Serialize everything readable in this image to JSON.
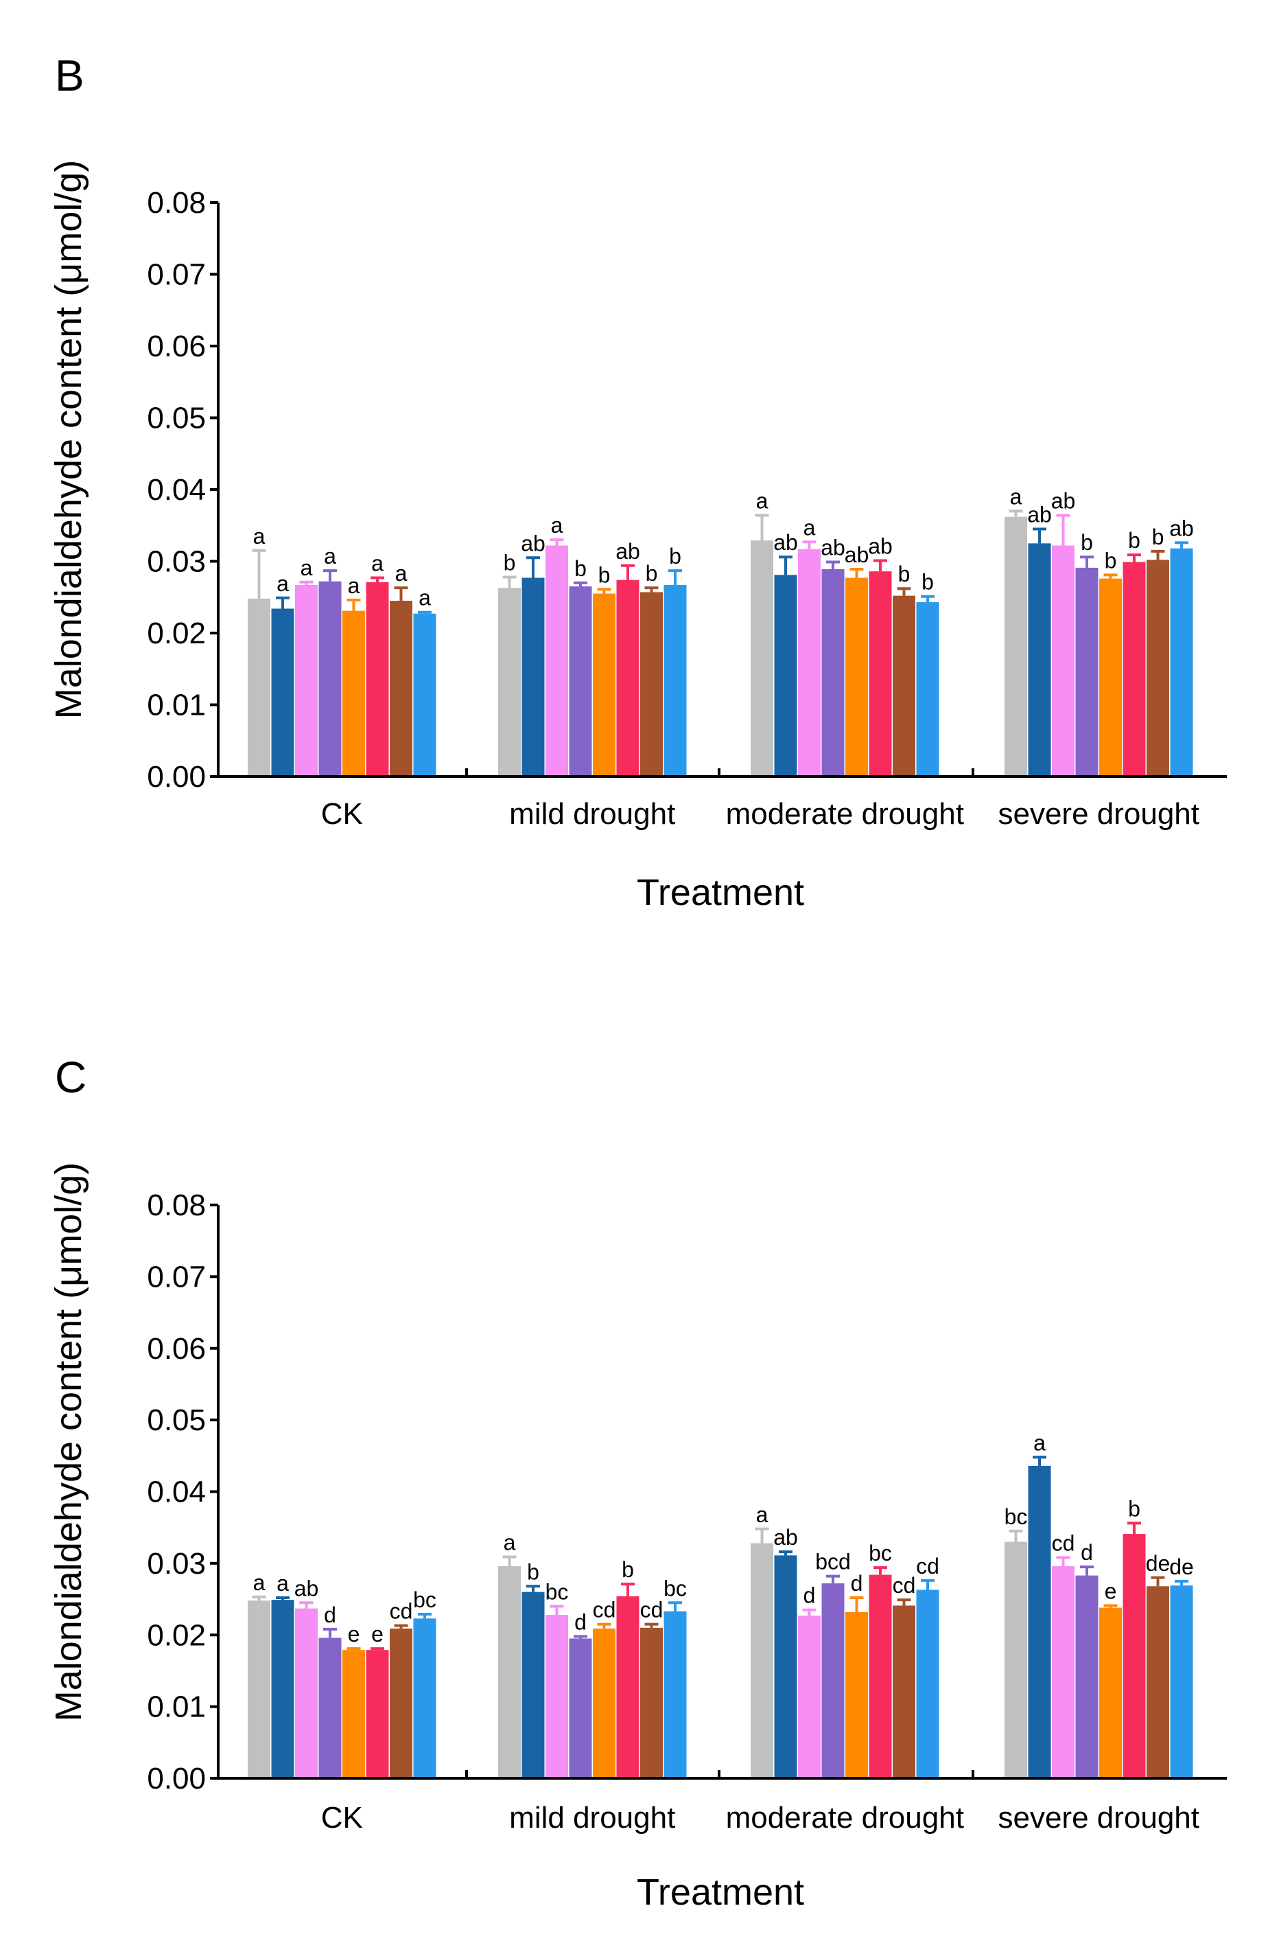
{
  "series_colors": [
    "#c0c0c0",
    "#1864a4",
    "#f78ef5",
    "#8464c8",
    "#ff8a00",
    "#f72c5c",
    "#a3522b",
    "#2a99ec"
  ],
  "chart_data": [
    {
      "type": "bar",
      "panel_label": "B",
      "xlabel": "Treatment",
      "ylabel": "Malondialdehyde content (μmol/g)",
      "ylim": [
        0,
        0.08
      ],
      "yticks": [
        "0.00",
        "0.01",
        "0.02",
        "0.03",
        "0.04",
        "0.05",
        "0.06",
        "0.07",
        "0.08"
      ],
      "categories": [
        "CK",
        "mild drought",
        "moderate drought",
        "severe drought"
      ],
      "series": [
        {
          "values": [
            0.0248,
            0.0263,
            0.0329,
            0.0362
          ],
          "errors": [
            0.0067,
            0.0015,
            0.0035,
            0.0008
          ]
        },
        {
          "values": [
            0.0234,
            0.0277,
            0.0281,
            0.0325
          ],
          "errors": [
            0.0015,
            0.0028,
            0.0025,
            0.002
          ]
        },
        {
          "values": [
            0.0267,
            0.0322,
            0.0317,
            0.0322
          ],
          "errors": [
            0.0004,
            0.0008,
            0.001,
            0.0042
          ]
        },
        {
          "values": [
            0.0272,
            0.0265,
            0.0289,
            0.0291
          ],
          "errors": [
            0.0015,
            0.0005,
            0.001,
            0.0015
          ]
        },
        {
          "values": [
            0.0231,
            0.0255,
            0.0277,
            0.0276
          ],
          "errors": [
            0.0015,
            0.0006,
            0.0012,
            0.0005
          ]
        },
        {
          "values": [
            0.0271,
            0.0274,
            0.0286,
            0.0299
          ],
          "errors": [
            0.0006,
            0.002,
            0.0015,
            0.001
          ]
        },
        {
          "values": [
            0.0245,
            0.0257,
            0.0252,
            0.0302
          ],
          "errors": [
            0.0018,
            0.0006,
            0.001,
            0.0012
          ]
        },
        {
          "values": [
            0.0227,
            0.0267,
            0.0243,
            0.0318
          ],
          "errors": [
            0.0002,
            0.002,
            0.0008,
            0.0008
          ]
        }
      ],
      "letters": [
        [
          "a",
          "b",
          "a",
          "a"
        ],
        [
          "a",
          "ab",
          "ab",
          "ab"
        ],
        [
          "a",
          "a",
          "a",
          "ab"
        ],
        [
          "a",
          "b",
          "ab",
          "b"
        ],
        [
          "a",
          "b",
          "ab",
          "b"
        ],
        [
          "a",
          "ab",
          "ab",
          "b"
        ],
        [
          "a",
          "b",
          "b",
          "b"
        ],
        [
          "a",
          "b",
          "b",
          "ab"
        ]
      ]
    },
    {
      "type": "bar",
      "panel_label": "C",
      "xlabel": "Treatment",
      "ylabel": "Malondialdehyde content (μmol/g)",
      "ylim": [
        0,
        0.08
      ],
      "yticks": [
        "0.00",
        "0.01",
        "0.02",
        "0.03",
        "0.04",
        "0.05",
        "0.06",
        "0.07",
        "0.08"
      ],
      "categories": [
        "CK",
        "mild drought",
        "moderate drought",
        "severe drought"
      ],
      "series": [
        {
          "values": [
            0.0248,
            0.0296,
            0.0328,
            0.033
          ],
          "errors": [
            0.0005,
            0.0013,
            0.002,
            0.0015
          ]
        },
        {
          "values": [
            0.0249,
            0.026,
            0.0311,
            0.0436
          ],
          "errors": [
            0.0003,
            0.0008,
            0.0005,
            0.0012
          ]
        },
        {
          "values": [
            0.0237,
            0.0228,
            0.0227,
            0.0296
          ],
          "errors": [
            0.0008,
            0.0012,
            0.0008,
            0.0012
          ]
        },
        {
          "values": [
            0.0196,
            0.0195,
            0.0272,
            0.0283
          ],
          "errors": [
            0.0012,
            0.0003,
            0.001,
            0.0012
          ]
        },
        {
          "values": [
            0.0179,
            0.0209,
            0.0232,
            0.0238
          ],
          "errors": [
            0.0002,
            0.0006,
            0.002,
            0.0003
          ]
        },
        {
          "values": [
            0.0179,
            0.0254,
            0.0284,
            0.0341
          ],
          "errors": [
            0.0002,
            0.0017,
            0.001,
            0.0015
          ]
        },
        {
          "values": [
            0.0209,
            0.021,
            0.0241,
            0.0268
          ],
          "errors": [
            0.0004,
            0.0005,
            0.0008,
            0.0012
          ]
        },
        {
          "values": [
            0.0223,
            0.0233,
            0.0263,
            0.0269
          ],
          "errors": [
            0.0006,
            0.0012,
            0.0013,
            0.0006
          ]
        }
      ],
      "letters": [
        [
          "a",
          "a",
          "a",
          "bc"
        ],
        [
          "a",
          "b",
          "ab",
          "a"
        ],
        [
          "ab",
          "bc",
          "d",
          "cd"
        ],
        [
          "d",
          "d",
          "bcd",
          "d"
        ],
        [
          "e",
          "cd",
          "d",
          "e"
        ],
        [
          "e",
          "b",
          "bc",
          "b"
        ],
        [
          "cd",
          "cd",
          "cd",
          "de"
        ],
        [
          "bc",
          "bc",
          "cd",
          "de"
        ]
      ]
    }
  ]
}
